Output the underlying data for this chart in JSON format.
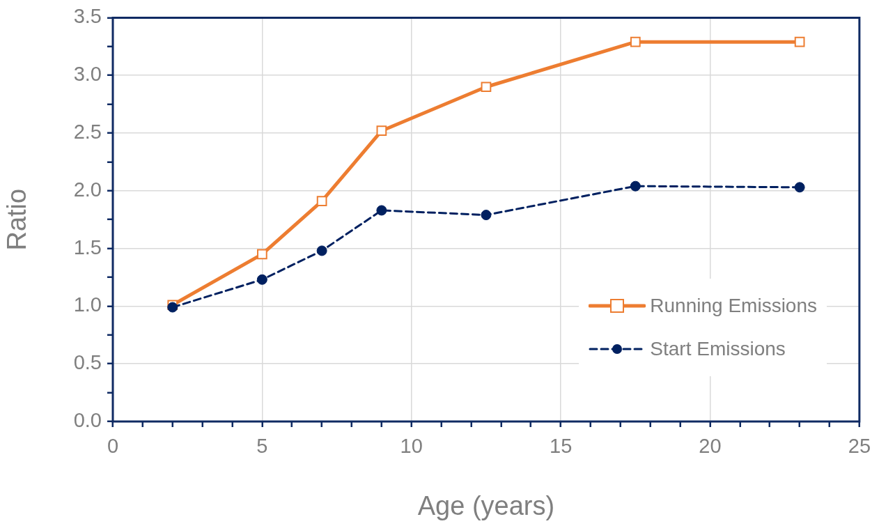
{
  "chart_data": {
    "type": "line",
    "xlabel": "Age (years)",
    "ylabel": "Ratio",
    "x": [
      2,
      5,
      7,
      9,
      12.5,
      17.5,
      23
    ],
    "series": [
      {
        "name": "Running Emissions",
        "color": "#ed7d31",
        "marker": "square",
        "line_style": "solid",
        "values": [
          1.01,
          1.45,
          1.91,
          2.52,
          2.9,
          3.29,
          3.29
        ]
      },
      {
        "name": "Start Emissions",
        "color": "#002060",
        "marker": "circle",
        "line_style": "dashed",
        "values": [
          0.99,
          1.23,
          1.48,
          1.83,
          1.79,
          2.04,
          2.03
        ]
      }
    ],
    "xlim": [
      0,
      25
    ],
    "xticks": [
      0,
      {
        "value": 1,
        "label": null
      },
      {
        "value": 2,
        "label": null
      },
      {
        "value": 3,
        "label": null
      },
      {
        "value": 4,
        "label": null
      },
      5,
      {
        "value": 6,
        "label": null
      },
      {
        "value": 7,
        "label": null
      },
      {
        "value": 8,
        "label": null
      },
      {
        "value": 9,
        "label": null
      },
      10,
      {
        "value": 11,
        "label": null
      },
      {
        "value": 12,
        "label": null
      },
      {
        "value": 13,
        "label": null
      },
      {
        "value": 14,
        "label": null
      },
      15,
      {
        "value": 16,
        "label": null
      },
      {
        "value": 17,
        "label": null
      },
      {
        "value": 18,
        "label": null
      },
      {
        "value": 19,
        "label": null
      },
      20,
      {
        "value": 21,
        "label": null
      },
      {
        "value": 22,
        "label": null
      },
      {
        "value": 23,
        "label": null
      },
      {
        "value": 24,
        "label": null
      },
      25
    ],
    "ylim": [
      0,
      3.5
    ],
    "yticks": [
      {
        "value": 0,
        "label": "0.0"
      },
      {
        "value": 0.25,
        "label": null
      },
      0.5,
      {
        "value": 0.75,
        "label": null
      },
      {
        "value": 1,
        "label": "1.0"
      },
      {
        "value": 1.25,
        "label": null
      },
      1.5,
      {
        "value": 1.75,
        "label": null
      },
      {
        "value": 2,
        "label": "2.0"
      },
      {
        "value": 2.25,
        "label": null
      },
      2.5,
      {
        "value": 2.75,
        "label": null
      },
      {
        "value": 3,
        "label": "3.0"
      },
      {
        "value": 3.25,
        "label": null
      },
      3.5
    ],
    "grid": true,
    "legend": "right"
  }
}
